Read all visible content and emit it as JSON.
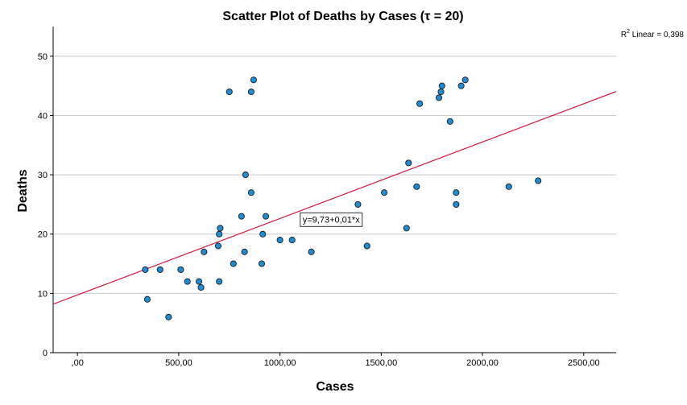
{
  "chart_data": {
    "type": "scatter",
    "title": "Scatter Plot of Deaths by Cases (τ = 20)",
    "xlabel": "Cases",
    "ylabel": "Deaths",
    "xlim": [
      -120,
      2660
    ],
    "ylim": [
      0,
      55
    ],
    "x_ticks": [
      0,
      500,
      1000,
      1500,
      2000,
      2500
    ],
    "x_tick_labels": [
      ",00",
      "500,00",
      "1000,00",
      "1500,00",
      "2000,00",
      "2500,00"
    ],
    "y_ticks": [
      0,
      10,
      20,
      30,
      40,
      50
    ],
    "y_tick_labels": [
      "0",
      "10",
      "20",
      "30",
      "40",
      "50"
    ],
    "grid": "horizontal",
    "point_color": "#1f8dd6",
    "line_color": "#d4143a",
    "fit_line": {
      "intercept": 9.73,
      "slope": 0.0129
    },
    "fit_label": "y=9,73+0,01*x",
    "r2_label": {
      "prefix": "R",
      "sup": "2",
      "suffix": " Linear = 0,398"
    },
    "points": [
      {
        "x": 335,
        "y": 14
      },
      {
        "x": 345,
        "y": 9
      },
      {
        "x": 408,
        "y": 14
      },
      {
        "x": 450,
        "y": 6
      },
      {
        "x": 510,
        "y": 14
      },
      {
        "x": 543,
        "y": 12
      },
      {
        "x": 600,
        "y": 12
      },
      {
        "x": 610,
        "y": 11
      },
      {
        "x": 625,
        "y": 17
      },
      {
        "x": 695,
        "y": 18
      },
      {
        "x": 700,
        "y": 20
      },
      {
        "x": 705,
        "y": 21
      },
      {
        "x": 700,
        "y": 12
      },
      {
        "x": 750,
        "y": 44
      },
      {
        "x": 770,
        "y": 15
      },
      {
        "x": 810,
        "y": 23
      },
      {
        "x": 825,
        "y": 17
      },
      {
        "x": 830,
        "y": 30
      },
      {
        "x": 858,
        "y": 27
      },
      {
        "x": 858,
        "y": 44
      },
      {
        "x": 870,
        "y": 46
      },
      {
        "x": 910,
        "y": 15
      },
      {
        "x": 915,
        "y": 20
      },
      {
        "x": 930,
        "y": 23
      },
      {
        "x": 1000,
        "y": 19
      },
      {
        "x": 1060,
        "y": 19
      },
      {
        "x": 1155,
        "y": 17
      },
      {
        "x": 1385,
        "y": 25
      },
      {
        "x": 1430,
        "y": 18
      },
      {
        "x": 1515,
        "y": 27
      },
      {
        "x": 1625,
        "y": 21
      },
      {
        "x": 1635,
        "y": 32
      },
      {
        "x": 1675,
        "y": 28
      },
      {
        "x": 1690,
        "y": 42
      },
      {
        "x": 1785,
        "y": 43
      },
      {
        "x": 1795,
        "y": 44
      },
      {
        "x": 1800,
        "y": 45
      },
      {
        "x": 1840,
        "y": 39
      },
      {
        "x": 1870,
        "y": 25
      },
      {
        "x": 1870,
        "y": 27
      },
      {
        "x": 1895,
        "y": 45
      },
      {
        "x": 1915,
        "y": 46
      },
      {
        "x": 2130,
        "y": 28
      },
      {
        "x": 2275,
        "y": 29
      }
    ]
  }
}
